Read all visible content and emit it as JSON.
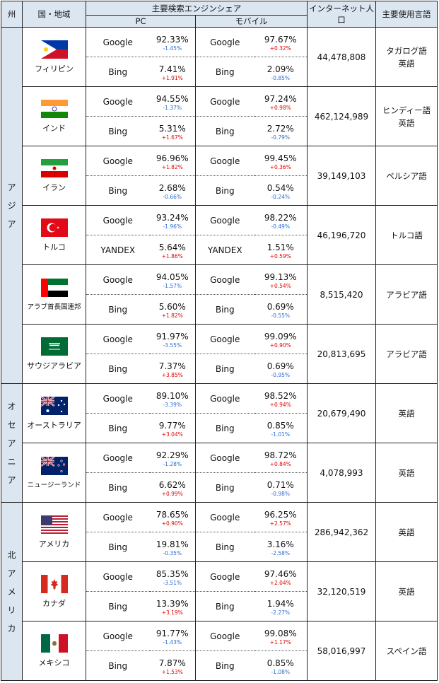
{
  "headers": {
    "region": "州",
    "country": "国・地域",
    "search_share": "主要検索エンジンシェア",
    "pc": "PC",
    "mobile": "モバイル",
    "internet_pop": "インターネット人口",
    "language": "主要使用言語"
  },
  "regions": {
    "asia": [
      "ア",
      "ジ",
      "ア"
    ],
    "oceania": [
      "オ",
      "セ",
      "ア",
      "ニ",
      "ア"
    ],
    "north_america": [
      "北",
      "ア",
      "メ",
      "リ",
      "カ"
    ]
  },
  "colors": {
    "increase": "#e00000",
    "decrease": "#2e6ccf",
    "header_bg": "#dce6f1"
  },
  "rows": [
    {
      "country": "フィリピン",
      "flag": "philippines-flag",
      "pc": [
        {
          "engine": "Google",
          "share": "92.33%",
          "change": "-1.45%",
          "dir": "down"
        },
        {
          "engine": "Bing",
          "share": "7.41%",
          "change": "+1.91%",
          "dir": "up"
        }
      ],
      "mobile": [
        {
          "engine": "Google",
          "share": "97.67%",
          "change": "+0.32%",
          "dir": "up"
        },
        {
          "engine": "Bing",
          "share": "2.09%",
          "change": "-0.85%",
          "dir": "down"
        }
      ],
      "internet_pop": "44,478,808",
      "languages": [
        "タガログ語",
        "英語"
      ]
    },
    {
      "country": "インド",
      "flag": "india-flag",
      "pc": [
        {
          "engine": "Google",
          "share": "94.55%",
          "change": "-1.37%",
          "dir": "down"
        },
        {
          "engine": "Bing",
          "share": "5.31%",
          "change": "+1.67%",
          "dir": "up"
        }
      ],
      "mobile": [
        {
          "engine": "Google",
          "share": "97.24%",
          "change": "+0.98%",
          "dir": "up"
        },
        {
          "engine": "Bing",
          "share": "2.72%",
          "change": "-0.79%",
          "dir": "down"
        }
      ],
      "internet_pop": "462,124,989",
      "languages": [
        "ヒンディー語",
        "英語"
      ]
    },
    {
      "country": "イラン",
      "flag": "iran-flag",
      "pc": [
        {
          "engine": "Google",
          "share": "96.96%",
          "change": "+1.82%",
          "dir": "up"
        },
        {
          "engine": "Bing",
          "share": "2.68%",
          "change": "-0.66%",
          "dir": "down"
        }
      ],
      "mobile": [
        {
          "engine": "Google",
          "share": "99.45%",
          "change": "+0.36%",
          "dir": "up"
        },
        {
          "engine": "Bing",
          "share": "0.54%",
          "change": "-0.24%",
          "dir": "down"
        }
      ],
      "internet_pop": "39,149,103",
      "languages": [
        "ペルシア語"
      ]
    },
    {
      "country": "トルコ",
      "flag": "turkey-flag",
      "pc": [
        {
          "engine": "Google",
          "share": "93.24%",
          "change": "-1.96%",
          "dir": "down"
        },
        {
          "engine": "YANDEX",
          "share": "5.64%",
          "change": "+1.86%",
          "dir": "up"
        }
      ],
      "mobile": [
        {
          "engine": "Google",
          "share": "98.22%",
          "change": "-0.49%",
          "dir": "down"
        },
        {
          "engine": "YANDEX",
          "share": "1.51%",
          "change": "+0.59%",
          "dir": "up"
        }
      ],
      "internet_pop": "46,196,720",
      "languages": [
        "トルコ語"
      ]
    },
    {
      "country": "アラブ首長国連邦",
      "flag": "uae-flag",
      "small": true,
      "pc": [
        {
          "engine": "Google",
          "share": "94.05%",
          "change": "-1.57%",
          "dir": "down"
        },
        {
          "engine": "Bing",
          "share": "5.60%",
          "change": "+1.82%",
          "dir": "up"
        }
      ],
      "mobile": [
        {
          "engine": "Google",
          "share": "99.13%",
          "change": "+0.54%",
          "dir": "up"
        },
        {
          "engine": "Bing",
          "share": "0.69%",
          "change": "-0.55%",
          "dir": "down"
        }
      ],
      "internet_pop": "8,515,420",
      "languages": [
        "アラビア語"
      ]
    },
    {
      "country": "サウジアラビア",
      "flag": "saudi-flag",
      "pc": [
        {
          "engine": "Google",
          "share": "91.97%",
          "change": "-3.55%",
          "dir": "down"
        },
        {
          "engine": "Bing",
          "share": "7.37%",
          "change": "+3.85%",
          "dir": "up"
        }
      ],
      "mobile": [
        {
          "engine": "Google",
          "share": "99.09%",
          "change": "+0.90%",
          "dir": "up"
        },
        {
          "engine": "Bing",
          "share": "0.69%",
          "change": "-0.95%",
          "dir": "down"
        }
      ],
      "internet_pop": "20,813,695",
      "languages": [
        "アラビア語"
      ]
    },
    {
      "country": "オーストラリア",
      "flag": "australia-flag",
      "pc": [
        {
          "engine": "Google",
          "share": "89.10%",
          "change": "-3.39%",
          "dir": "down"
        },
        {
          "engine": "Bing",
          "share": "9.77%",
          "change": "+3.04%",
          "dir": "up"
        }
      ],
      "mobile": [
        {
          "engine": "Google",
          "share": "98.52%",
          "change": "+0.94%",
          "dir": "up"
        },
        {
          "engine": "Bing",
          "share": "0.85%",
          "change": "-1.01%",
          "dir": "down"
        }
      ],
      "internet_pop": "20,679,490",
      "languages": [
        "英語"
      ]
    },
    {
      "country": "ニュージーランド",
      "flag": "newzealand-flag",
      "small": true,
      "pc": [
        {
          "engine": "Google",
          "share": "92.29%",
          "change": "-1.28%",
          "dir": "down"
        },
        {
          "engine": "Bing",
          "share": "6.62%",
          "change": "+0.99%",
          "dir": "up"
        }
      ],
      "mobile": [
        {
          "engine": "Google",
          "share": "98.72%",
          "change": "+0.84%",
          "dir": "up"
        },
        {
          "engine": "Bing",
          "share": "0.71%",
          "change": "-0.98%",
          "dir": "down"
        }
      ],
      "internet_pop": "4,078,993",
      "languages": [
        "英語"
      ]
    },
    {
      "country": "アメリカ",
      "flag": "usa-flag",
      "pc": [
        {
          "engine": "Google",
          "share": "78.65%",
          "change": "+0.90%",
          "dir": "up"
        },
        {
          "engine": "Bing",
          "share": "19.81%",
          "change": "-0.35%",
          "dir": "down"
        }
      ],
      "mobile": [
        {
          "engine": "Google",
          "share": "96.25%",
          "change": "+2.57%",
          "dir": "up"
        },
        {
          "engine": "Bing",
          "share": "3.16%",
          "change": "-2.58%",
          "dir": "down"
        }
      ],
      "internet_pop": "286,942,362",
      "languages": [
        "英語"
      ]
    },
    {
      "country": "カナダ",
      "flag": "canada-flag",
      "pc": [
        {
          "engine": "Google",
          "share": "85.35%",
          "change": "-3.51%",
          "dir": "down"
        },
        {
          "engine": "Bing",
          "share": "13.39%",
          "change": "+3.19%",
          "dir": "up"
        }
      ],
      "mobile": [
        {
          "engine": "Google",
          "share": "97.46%",
          "change": "+2.04%",
          "dir": "up"
        },
        {
          "engine": "Bing",
          "share": "1.94%",
          "change": "-2.27%",
          "dir": "down"
        }
      ],
      "internet_pop": "32,120,519",
      "languages": [
        "英語"
      ]
    },
    {
      "country": "メキシコ",
      "flag": "mexico-flag",
      "pc": [
        {
          "engine": "Google",
          "share": "91.77%",
          "change": "-1.43%",
          "dir": "down"
        },
        {
          "engine": "Bing",
          "share": "7.87%",
          "change": "+1.53%",
          "dir": "up"
        }
      ],
      "mobile": [
        {
          "engine": "Google",
          "share": "99.08%",
          "change": "+1.17%",
          "dir": "up"
        },
        {
          "engine": "Bing",
          "share": "0.85%",
          "change": "-1.08%",
          "dir": "down"
        }
      ],
      "internet_pop": "58,016,997",
      "languages": [
        "スペイン語"
      ]
    }
  ]
}
